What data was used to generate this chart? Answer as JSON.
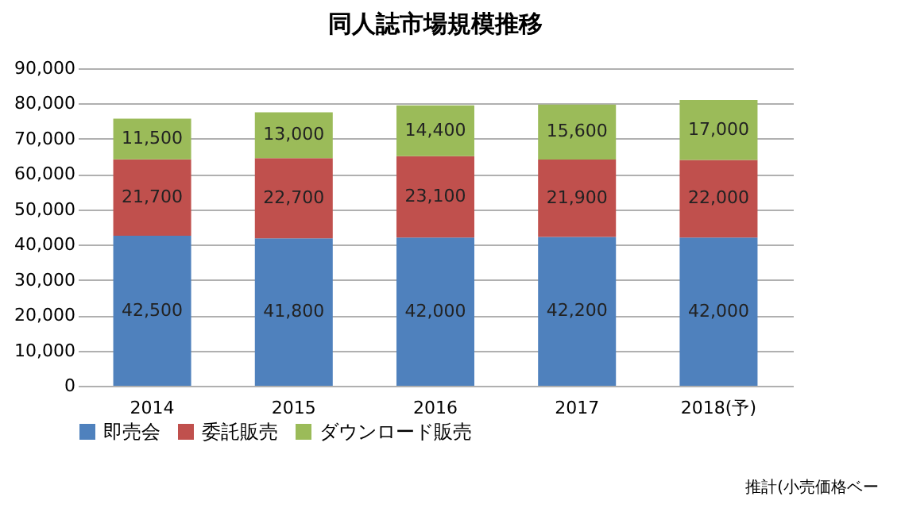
{
  "chart_data": {
    "type": "bar",
    "title": "同人誌市場規模推移",
    "categories": [
      "2014",
      "2015",
      "2016",
      "2017",
      "2018(予)"
    ],
    "stacked": true,
    "series": [
      {
        "name": "即売会",
        "color": "#4f81bd",
        "values": [
          42500,
          41800,
          42000,
          42200,
          42000
        ],
        "value_labels": [
          "42,500",
          "41,800",
          "42,000",
          "42,200",
          "42,000"
        ]
      },
      {
        "name": "委託販売",
        "color": "#c0504d",
        "values": [
          21700,
          22700,
          23100,
          21900,
          22000
        ],
        "value_labels": [
          "21,700",
          "22,700",
          "23,100",
          "21,900",
          "22,000"
        ]
      },
      {
        "name": "ダウンロード販売",
        "color": "#9bbb59",
        "values": [
          11500,
          13000,
          14400,
          15600,
          17000
        ],
        "value_labels": [
          "11,500",
          "13,000",
          "14,400",
          "15,600",
          "17,000"
        ]
      }
    ],
    "ylim": [
      0,
      90000
    ],
    "yticks": [
      {
        "value": 0,
        "label": "0"
      },
      {
        "value": 10000,
        "label": "10,000"
      },
      {
        "value": 20000,
        "label": "20,000"
      },
      {
        "value": 30000,
        "label": "30,000"
      },
      {
        "value": 40000,
        "label": "40,000"
      },
      {
        "value": 50000,
        "label": "50,000"
      },
      {
        "value": 60000,
        "label": "60,000"
      },
      {
        "value": 70000,
        "label": "70,000"
      },
      {
        "value": 80000,
        "label": "80,000"
      },
      {
        "value": 90000,
        "label": "90,000"
      }
    ],
    "grid": "y",
    "legend": "bottom",
    "annotations": [
      "推計(小売価格ベー"
    ]
  }
}
